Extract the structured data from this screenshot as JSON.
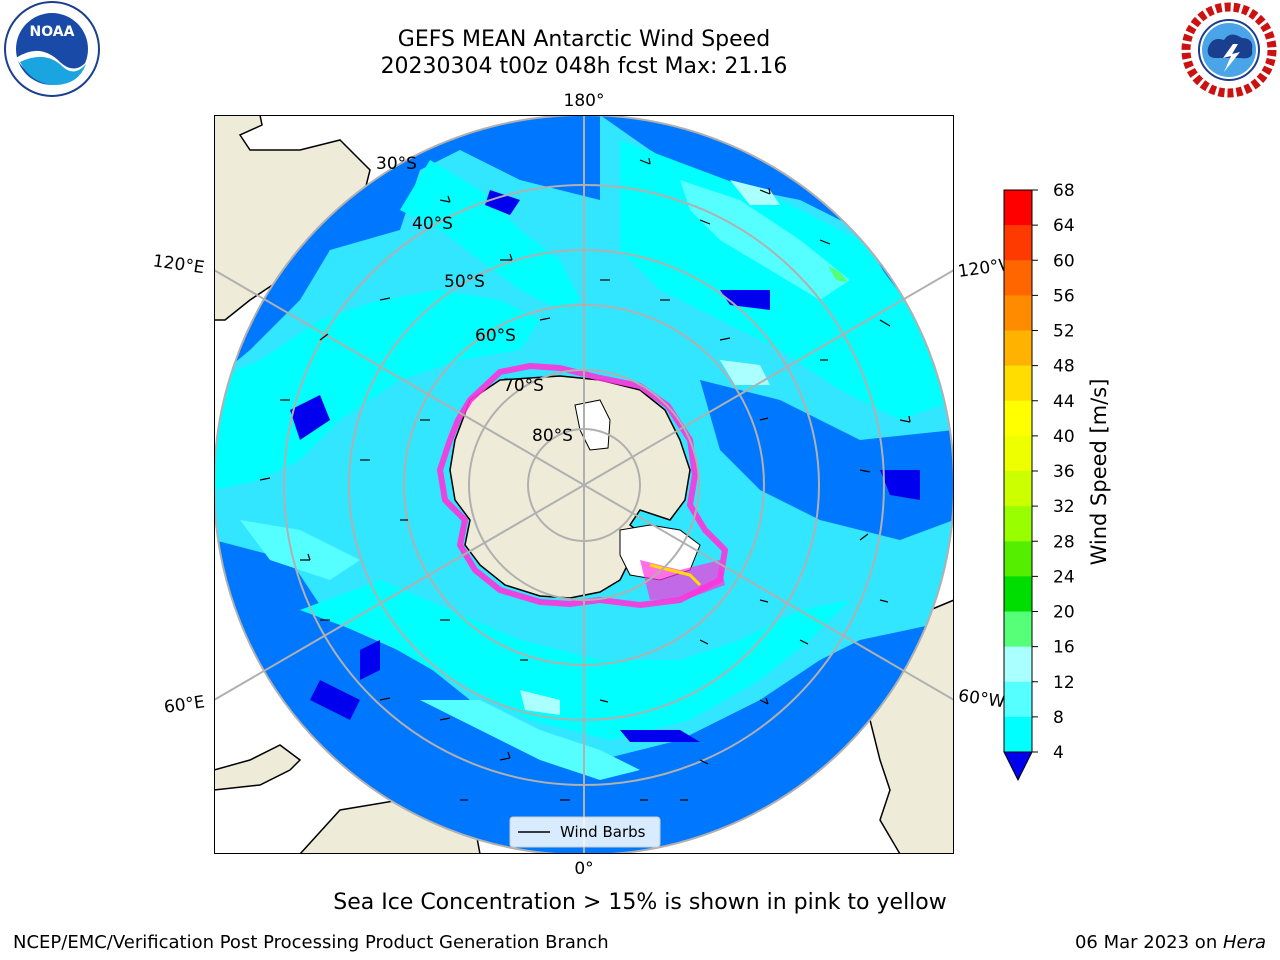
{
  "header": {
    "title_line1": "GEFS MEAN Antarctic Wind Speed",
    "title_line2": "20230304 t00z 048h fcst   Max: 21.16"
  },
  "map": {
    "projection": "south-polar-stereographic",
    "meridian_labels": {
      "top": "180°",
      "bottom": "0°",
      "upper_left": "120°E",
      "upper_right": "120°W",
      "lower_left": "60°E",
      "lower_right": "60°W"
    },
    "parallel_labels": [
      "30°S",
      "40°S",
      "50°S",
      "60°S",
      "70°S",
      "80°S"
    ],
    "legend": {
      "label": "Wind Barbs"
    },
    "land_color": "#eeecd9",
    "sea_ice_color": "#ff33dd"
  },
  "colorbar": {
    "label": "Wind Speed [m/s]",
    "ticks": [
      "68",
      "64",
      "60",
      "56",
      "52",
      "48",
      "44",
      "40",
      "36",
      "32",
      "28",
      "24",
      "20",
      "16",
      "12",
      "8",
      "4"
    ],
    "colors": [
      "#ff0000",
      "#ff3a00",
      "#ff6600",
      "#ff8c00",
      "#ffb300",
      "#ffdd00",
      "#ffff00",
      "#eeff00",
      "#ccff00",
      "#99ff00",
      "#55ee00",
      "#00dd00",
      "#55ff77",
      "#aaffff",
      "#55ffff",
      "#00ffff",
      "#0077ff"
    ],
    "under_color": "#0000ee"
  },
  "caption": "Sea Ice Concentration > 15% is shown in pink to yellow",
  "footer": {
    "left": "NCEP/EMC/Verification Post Processing Product Generation Branch",
    "right_date": "06 Mar 2023 on ",
    "right_machine": "Hera"
  }
}
